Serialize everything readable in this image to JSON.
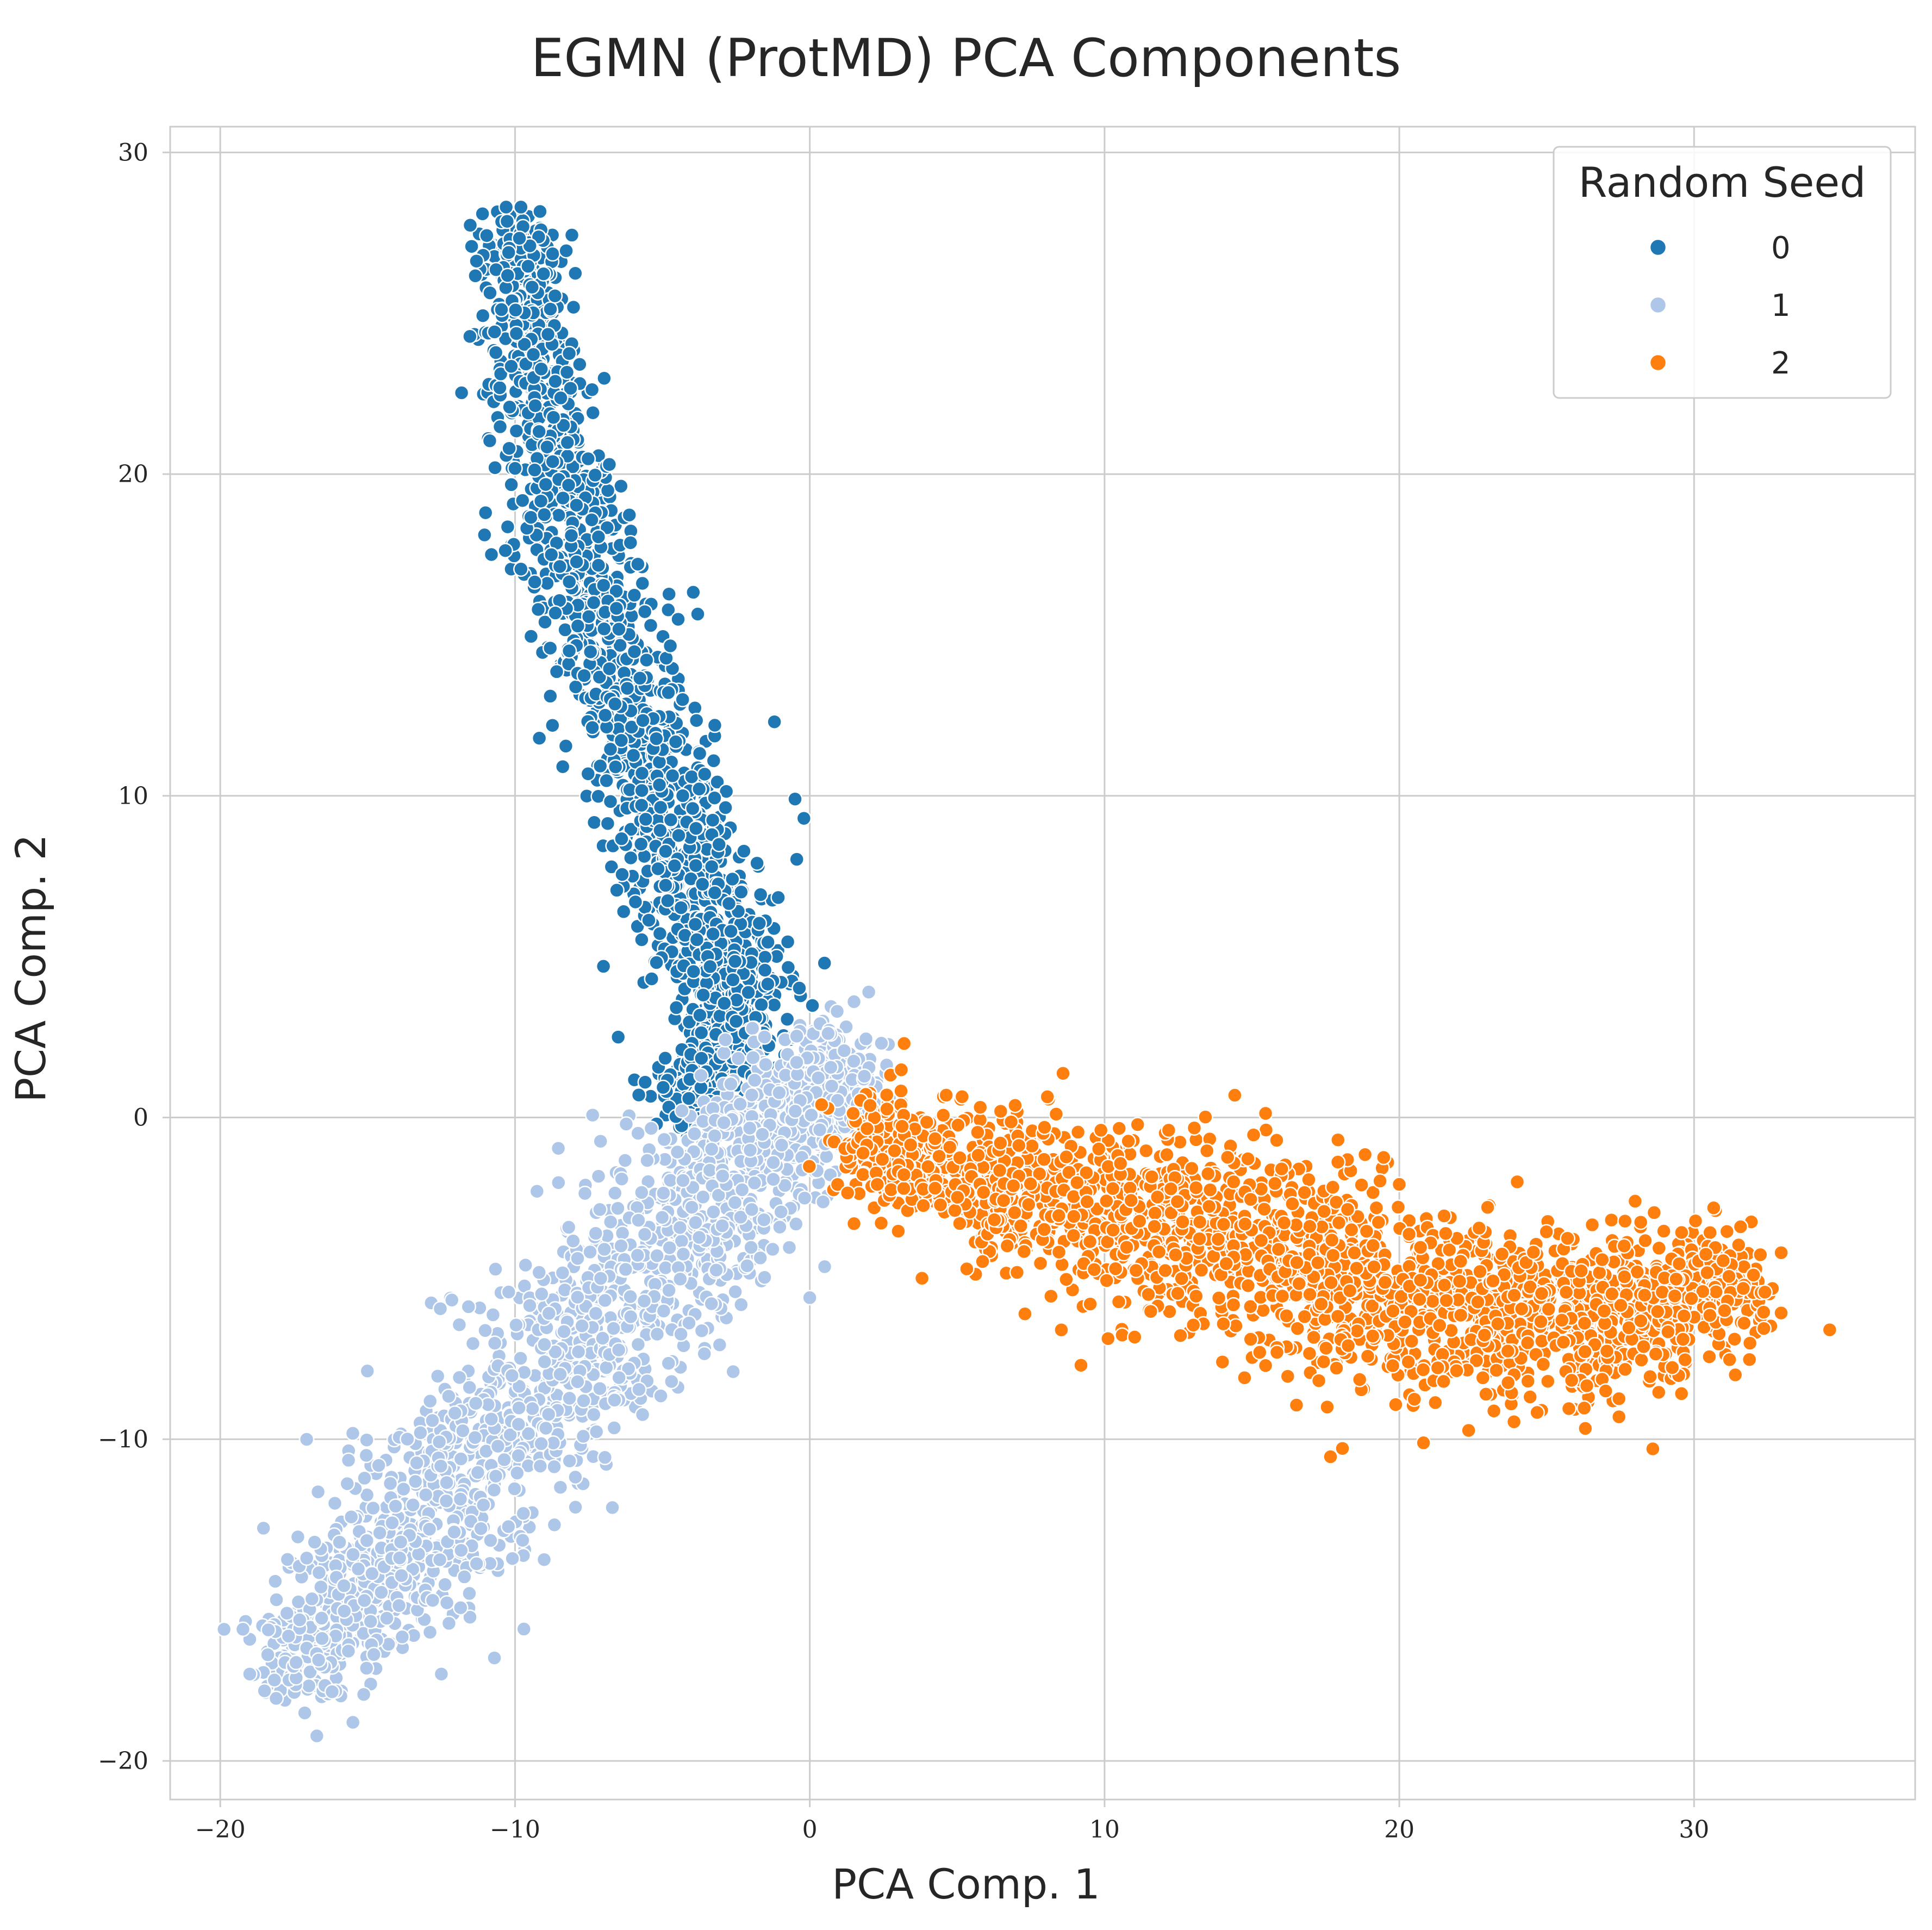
{
  "chart_data": {
    "type": "scatter",
    "title": "EGMN (ProtMD) PCA Components",
    "xlabel": "PCA Comp. 1",
    "ylabel": "PCA Comp. 2",
    "xlim": [
      -21.7,
      37.5
    ],
    "ylim": [
      -21.2,
      30.8
    ],
    "xticks": [
      -20,
      -10,
      0,
      10,
      20,
      30
    ],
    "yticks": [
      -20,
      -10,
      0,
      10,
      20,
      30
    ],
    "xtick_labels": [
      "−20",
      "−10",
      "0",
      "10",
      "20",
      "30"
    ],
    "ytick_labels": [
      "−20",
      "−10",
      "0",
      "10",
      "20",
      "30"
    ],
    "grid": true,
    "legend": {
      "title": "Random Seed",
      "position": "upper right"
    },
    "series": [
      {
        "name": "0",
        "color": "#1f77b4",
        "spine": [
          [
            -10.0,
            27.5
          ],
          [
            -9.0,
            22.0
          ],
          [
            -7.5,
            16.5
          ],
          [
            -5.5,
            11.0
          ],
          [
            -3.5,
            6.5
          ],
          [
            -2.0,
            3.0
          ],
          [
            -4.5,
            0.5
          ]
        ],
        "approx_count": 1800,
        "spread": 1.1,
        "outliers": [
          [
            -10.3,
            28.3
          ],
          [
            -9.8,
            28.3
          ],
          [
            -11.0,
            18.8
          ],
          [
            -10.8,
            17.5
          ],
          [
            -10.2,
            20.8
          ],
          [
            -6.8,
            20.3
          ],
          [
            -1.2,
            12.3
          ],
          [
            -0.5,
            9.9
          ],
          [
            -0.2,
            9.3
          ],
          [
            0.5,
            4.8
          ],
          [
            -7.0,
            4.7
          ],
          [
            -6.5,
            2.5
          ],
          [
            -5.8,
            0.7
          ],
          [
            -5.2,
            -0.2
          ]
        ]
      },
      {
        "name": "1",
        "color": "#aec7e8",
        "spine": [
          [
            -18.0,
            -17.2
          ],
          [
            -14.5,
            -14.0
          ],
          [
            -11.0,
            -10.5
          ],
          [
            -7.5,
            -6.5
          ],
          [
            -4.0,
            -3.0
          ],
          [
            -1.0,
            -0.2
          ],
          [
            1.5,
            2.0
          ]
        ],
        "approx_count": 1900,
        "spread": 1.6,
        "outliers": [
          [
            -19.0,
            -17.3
          ],
          [
            -15.5,
            -18.8
          ],
          [
            -16.8,
            -13.2
          ],
          [
            -12.5,
            -17.3
          ],
          [
            2.0,
            3.9
          ],
          [
            1.5,
            3.6
          ],
          [
            -2.6,
            -7.9
          ],
          [
            0.0,
            -5.6
          ],
          [
            -10.7,
            -16.8
          ],
          [
            -9.7,
            -15.9
          ]
        ]
      },
      {
        "name": "2",
        "color": "#ff7f0e",
        "spine": [
          [
            1.5,
            -0.5
          ],
          [
            5.0,
            -2.0
          ],
          [
            9.0,
            -2.5
          ],
          [
            13.0,
            -3.5
          ],
          [
            17.0,
            -4.8
          ],
          [
            21.0,
            -5.8
          ],
          [
            25.0,
            -6.5
          ],
          [
            29.0,
            -5.5
          ],
          [
            32.0,
            -5.3
          ]
        ],
        "approx_count": 2200,
        "spread": 1.55,
        "outliers": [
          [
            34.6,
            -6.6
          ],
          [
            28.6,
            -10.3
          ],
          [
            9.2,
            -7.7
          ],
          [
            14.0,
            -7.6
          ],
          [
            31.4,
            -8.0
          ],
          [
            27.0,
            -8.5
          ],
          [
            24.0,
            -2.0
          ],
          [
            28.0,
            -2.6
          ],
          [
            1.5,
            -3.3
          ],
          [
            0.4,
            0.4
          ],
          [
            3.2,
            2.3
          ]
        ]
      }
    ]
  }
}
